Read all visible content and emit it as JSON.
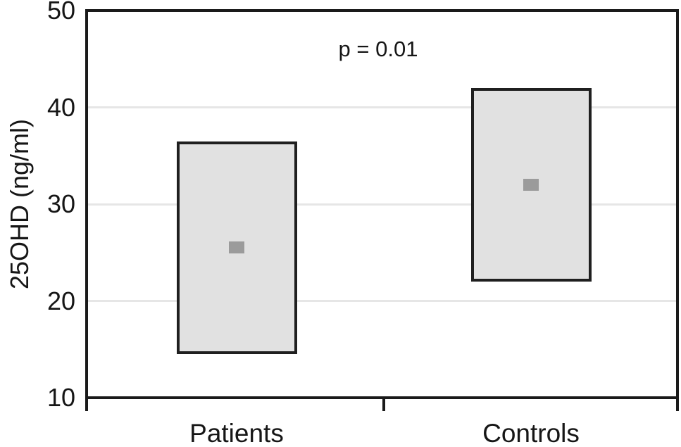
{
  "chart_data": {
    "type": "box",
    "title": "",
    "annotation": "p = 0.01",
    "xlabel": "",
    "ylabel": "25OHD (ng/ml)",
    "ylim": [
      10,
      50
    ],
    "yticks": [
      50,
      40,
      30,
      20,
      10
    ],
    "gridline_values": [
      40,
      30,
      20
    ],
    "grid": "horizontal",
    "legend": "none",
    "categories": [
      "Patients",
      "Controls"
    ],
    "series": [
      {
        "name": "Patients",
        "box_low": 14.5,
        "box_high": 36.5,
        "mean": 25.5
      },
      {
        "name": "Controls",
        "box_low": 22,
        "box_high": 42,
        "mean": 32
      }
    ]
  },
  "colors": {
    "background": "#ffffff",
    "axis": "#1a1a1a",
    "text": "#161616",
    "box_fill": "#e1e1e1",
    "box_border": "#1f1f1f",
    "marker": "#9b9b9b",
    "gridline": "#e6e6e6"
  }
}
